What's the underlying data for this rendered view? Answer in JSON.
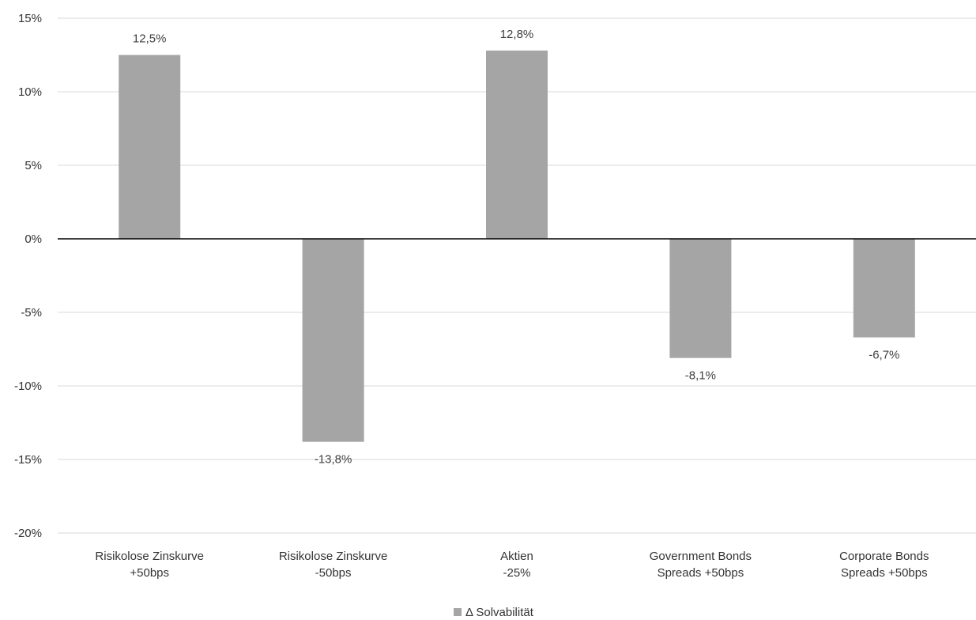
{
  "chart_data": {
    "type": "bar",
    "categories": [
      [
        "Risikolose Zinskurve",
        "+50bps"
      ],
      [
        "Risikolose Zinskurve",
        "-50bps"
      ],
      [
        "Aktien",
        "-25%"
      ],
      [
        "Government Bonds",
        "Spreads +50bps"
      ],
      [
        "Corporate Bonds",
        "Spreads +50bps"
      ]
    ],
    "series": [
      {
        "name": "Δ Solvabilität",
        "values": [
          12.5,
          -13.8,
          12.8,
          -8.1,
          -6.7
        ],
        "value_labels": [
          "12,5%",
          "-13,8%",
          "12,8%",
          "-8,1%",
          "-6,7%"
        ],
        "color": "#a5a5a5"
      }
    ],
    "y_ticks": [
      15,
      10,
      5,
      0,
      -5,
      -10,
      -15,
      -20
    ],
    "y_tick_labels": [
      "15%",
      "10%",
      "5%",
      "0%",
      "-5%",
      "-10%",
      "-15%",
      "-20%"
    ],
    "ylim": [
      -20,
      15
    ],
    "grid": true,
    "legend_position": "bottom",
    "colors": {
      "bar": "#a5a5a5",
      "grid": "#d9d9d9",
      "zero_line": "#000000"
    }
  }
}
